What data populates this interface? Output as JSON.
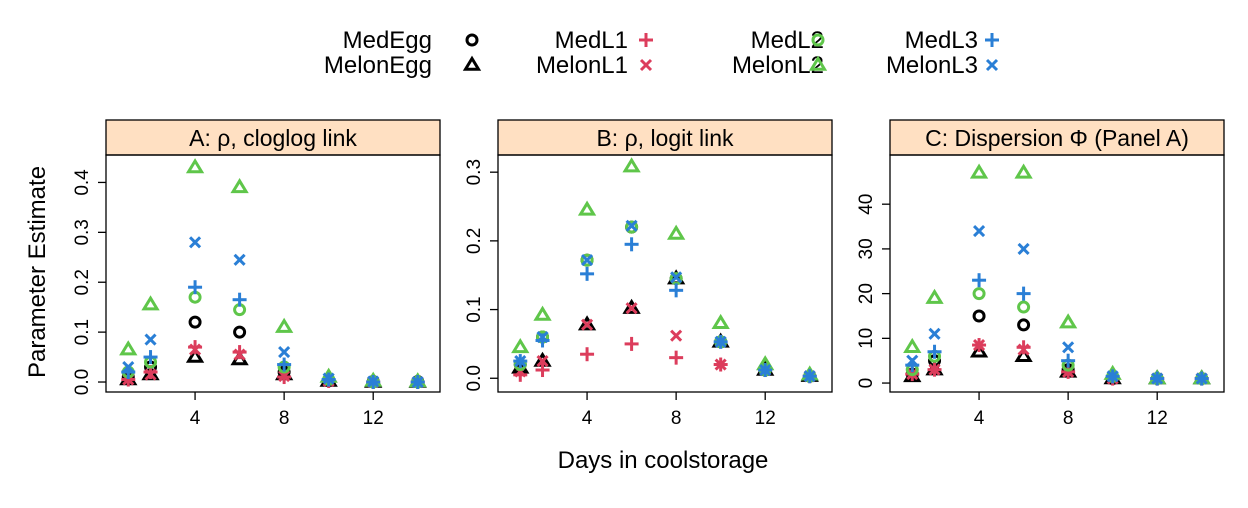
{
  "colors": {
    "black": "#000000",
    "red": "#dc3d5c",
    "green": "#5fc64a",
    "blue": "#2a7fd6",
    "strip": "#ffe0c2"
  },
  "legend": {
    "placement": "top",
    "entries": [
      {
        "label": "MedEgg",
        "symbol": "circle",
        "color": "black"
      },
      {
        "label": "MelonEgg",
        "symbol": "triangle",
        "color": "black"
      },
      {
        "label": "MedL1",
        "symbol": "plus",
        "color": "red"
      },
      {
        "label": "MelonL1",
        "symbol": "cross",
        "color": "red"
      },
      {
        "label": "MedL2",
        "symbol": "circle",
        "color": "green"
      },
      {
        "label": "MelonL2",
        "symbol": "triangle",
        "color": "green"
      },
      {
        "label": "MedL3",
        "symbol": "plus",
        "color": "blue"
      },
      {
        "label": "MelonL3",
        "symbol": "cross",
        "color": "blue"
      }
    ]
  },
  "xlabel": "Days in coolstorage",
  "ylabel": "Parameter Estimate",
  "chart_data": [
    {
      "type": "scatter",
      "title": "A: ρ, cloglog link",
      "xlim": [
        0,
        15
      ],
      "ylim": [
        -0.02,
        0.455
      ],
      "xticks": [
        4,
        8,
        12
      ],
      "yticks": [
        0.0,
        0.1,
        0.2,
        0.3,
        0.4
      ],
      "ytick_labels": [
        "0.0",
        "0.1",
        "0.2",
        "0.3",
        "0.4"
      ],
      "series": [
        {
          "name": "MedEgg",
          "x": [
            1,
            2,
            4,
            6,
            8,
            10,
            12,
            14
          ],
          "y": [
            0.01,
            0.03,
            0.12,
            0.1,
            0.02,
            0.003,
            0.001,
            0.001
          ]
        },
        {
          "name": "MelonEgg",
          "x": [
            1,
            2,
            4,
            6,
            8,
            10,
            12,
            14
          ],
          "y": [
            0.005,
            0.015,
            0.05,
            0.045,
            0.015,
            0.002,
            0.0,
            0.0
          ]
        },
        {
          "name": "MedL1",
          "x": [
            1,
            2,
            4,
            6,
            8,
            10,
            12,
            14
          ],
          "y": [
            0.005,
            0.02,
            0.07,
            0.06,
            0.01,
            0.002,
            0.0,
            0.0
          ]
        },
        {
          "name": "MelonL1",
          "x": [
            1,
            2,
            4,
            6,
            8,
            10,
            12,
            14
          ],
          "y": [
            0.005,
            0.015,
            0.065,
            0.055,
            0.012,
            0.002,
            0.0,
            0.0
          ]
        },
        {
          "name": "MedL2",
          "x": [
            1,
            2,
            4,
            6,
            8,
            10,
            12,
            14
          ],
          "y": [
            0.02,
            0.04,
            0.17,
            0.145,
            0.03,
            0.005,
            0.0,
            0.0
          ]
        },
        {
          "name": "MelonL2",
          "x": [
            1,
            2,
            4,
            6,
            8,
            10,
            12,
            14
          ],
          "y": [
            0.065,
            0.155,
            0.43,
            0.39,
            0.11,
            0.01,
            0.002,
            0.001
          ]
        },
        {
          "name": "MedL3",
          "x": [
            1,
            2,
            4,
            6,
            8,
            10,
            12,
            14
          ],
          "y": [
            0.02,
            0.05,
            0.19,
            0.165,
            0.035,
            0.005,
            0.0,
            0.0
          ]
        },
        {
          "name": "MelonL3",
          "x": [
            1,
            2,
            4,
            6,
            8,
            10,
            12,
            14
          ],
          "y": [
            0.03,
            0.085,
            0.28,
            0.245,
            0.06,
            0.007,
            0.001,
            0.0
          ]
        }
      ]
    },
    {
      "type": "scatter",
      "title": "B: ρ, logit link",
      "xlim": [
        0,
        15
      ],
      "ylim": [
        -0.02,
        0.325
      ],
      "xticks": [
        4,
        8,
        12
      ],
      "yticks": [
        0.0,
        0.1,
        0.2,
        0.3
      ],
      "ytick_labels": [
        "0.0",
        "0.1",
        "0.2",
        "0.3"
      ],
      "series": [
        {
          "name": "MedEgg",
          "x": [
            1,
            2,
            4,
            6,
            8,
            10,
            12,
            14
          ],
          "y": [
            0.02,
            0.06,
            0.172,
            0.22,
            0.145,
            0.053,
            0.012,
            0.003
          ]
        },
        {
          "name": "MelonEgg",
          "x": [
            1,
            2,
            4,
            6,
            8,
            10,
            12,
            14
          ],
          "y": [
            0.015,
            0.025,
            0.078,
            0.102,
            0.145,
            0.053,
            0.012,
            0.003
          ]
        },
        {
          "name": "MedL1",
          "x": [
            1,
            2,
            4,
            6,
            8,
            10,
            12,
            14
          ],
          "y": [
            0.005,
            0.012,
            0.035,
            0.05,
            0.03,
            0.02,
            0.012,
            0.003
          ]
        },
        {
          "name": "MelonL1",
          "x": [
            1,
            2,
            4,
            6,
            8,
            10,
            12,
            14
          ],
          "y": [
            0.01,
            0.025,
            0.078,
            0.102,
            0.062,
            0.02,
            0.012,
            0.003
          ]
        },
        {
          "name": "MedL2",
          "x": [
            1,
            2,
            4,
            6,
            8,
            10,
            12,
            14
          ],
          "y": [
            0.02,
            0.06,
            0.172,
            0.22,
            0.145,
            0.053,
            0.012,
            0.003
          ]
        },
        {
          "name": "MelonL2",
          "x": [
            1,
            2,
            4,
            6,
            8,
            10,
            12,
            14
          ],
          "y": [
            0.045,
            0.092,
            0.245,
            0.308,
            0.21,
            0.08,
            0.02,
            0.005
          ]
        },
        {
          "name": "MedL3",
          "x": [
            1,
            2,
            4,
            6,
            8,
            10,
            12,
            14
          ],
          "y": [
            0.025,
            0.055,
            0.152,
            0.195,
            0.128,
            0.053,
            0.012,
            0.003
          ]
        },
        {
          "name": "MelonL3",
          "x": [
            1,
            2,
            4,
            6,
            8,
            10,
            12,
            14
          ],
          "y": [
            0.025,
            0.06,
            0.172,
            0.222,
            0.147,
            0.053,
            0.012,
            0.003
          ]
        }
      ]
    },
    {
      "type": "scatter",
      "title": "C: Dispersion Φ (Panel A)",
      "xlim": [
        0,
        15
      ],
      "ylim": [
        -2,
        51
      ],
      "xticks": [
        4,
        8,
        12
      ],
      "yticks": [
        0,
        10,
        20,
        30,
        40
      ],
      "ytick_labels": [
        "0",
        "10",
        "20",
        "30",
        "40"
      ],
      "series": [
        {
          "name": "MedEgg",
          "x": [
            1,
            2,
            4,
            6,
            8,
            10,
            12,
            14
          ],
          "y": [
            2,
            5,
            15,
            13,
            3,
            1,
            1,
            1
          ]
        },
        {
          "name": "MelonEgg",
          "x": [
            1,
            2,
            4,
            6,
            8,
            10,
            12,
            14
          ],
          "y": [
            1.5,
            3,
            7,
            6,
            2.5,
            1,
            1,
            1
          ]
        },
        {
          "name": "MedL1",
          "x": [
            1,
            2,
            4,
            6,
            8,
            10,
            12,
            14
          ],
          "y": [
            2,
            3,
            8.5,
            8,
            2.5,
            1,
            1,
            1
          ]
        },
        {
          "name": "MelonL1",
          "x": [
            1,
            2,
            4,
            6,
            8,
            10,
            12,
            14
          ],
          "y": [
            2,
            3,
            8.5,
            7.5,
            2.5,
            1,
            1,
            1
          ]
        },
        {
          "name": "MedL2",
          "x": [
            1,
            2,
            4,
            6,
            8,
            10,
            12,
            14
          ],
          "y": [
            3,
            6,
            20,
            17,
            4,
            1.5,
            1,
            1
          ]
        },
        {
          "name": "MelonL2",
          "x": [
            1,
            2,
            4,
            6,
            8,
            10,
            12,
            14
          ],
          "y": [
            8,
            19,
            47,
            47,
            13.5,
            2,
            1,
            1
          ]
        },
        {
          "name": "MedL3",
          "x": [
            1,
            2,
            4,
            6,
            8,
            10,
            12,
            14
          ],
          "y": [
            4,
            7,
            23,
            20,
            5,
            1.5,
            1,
            1
          ]
        },
        {
          "name": "MelonL3",
          "x": [
            1,
            2,
            4,
            6,
            8,
            10,
            12,
            14
          ],
          "y": [
            5,
            11,
            34,
            30,
            8,
            1.5,
            1,
            1
          ]
        }
      ]
    }
  ]
}
